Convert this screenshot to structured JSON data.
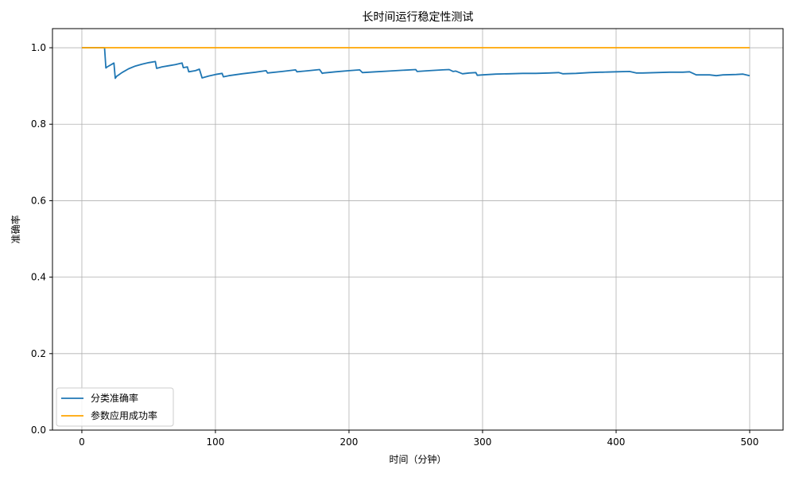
{
  "chart_data": {
    "type": "line",
    "title": "长时间运行稳定性测试",
    "xlabel": "时间（分钟）",
    "ylabel": "准确率",
    "xlim": [
      -22,
      525
    ],
    "ylim": [
      0.0,
      1.05
    ],
    "xticks": [
      0,
      100,
      200,
      300,
      400,
      500
    ],
    "yticks": [
      0.0,
      0.2,
      0.4,
      0.6,
      0.8,
      1.0
    ],
    "xtick_labels": [
      "0",
      "100",
      "200",
      "300",
      "400",
      "500"
    ],
    "ytick_labels": [
      "0.0",
      "0.2",
      "0.4",
      "0.6",
      "0.8",
      "1.0"
    ],
    "grid": true,
    "legend_position": "lower-left",
    "series": [
      {
        "name": "分类准确率",
        "color": "#1f77b4",
        "x": [
          0,
          17,
          18,
          19,
          24,
          25,
          26,
          30,
          35,
          40,
          45,
          50,
          55,
          56,
          60,
          65,
          70,
          75,
          76,
          79,
          80,
          85,
          88,
          90,
          95,
          100,
          105,
          106,
          110,
          120,
          130,
          138,
          139,
          150,
          160,
          161,
          170,
          178,
          180,
          181,
          190,
          200,
          208,
          210,
          220,
          230,
          240,
          250,
          251,
          260,
          270,
          275,
          278,
          280,
          285,
          290,
          295,
          296,
          300,
          310,
          320,
          330,
          340,
          350,
          357,
          360,
          370,
          380,
          388,
          390,
          400,
          410,
          415,
          420,
          430,
          440,
          450,
          455,
          460,
          470,
          475,
          480,
          490,
          495,
          500
        ],
        "values": [
          1.0,
          1.0,
          0.947,
          0.95,
          0.96,
          0.92,
          0.925,
          0.935,
          0.945,
          0.952,
          0.957,
          0.961,
          0.964,
          0.946,
          0.95,
          0.953,
          0.956,
          0.96,
          0.948,
          0.95,
          0.937,
          0.94,
          0.944,
          0.921,
          0.926,
          0.93,
          0.933,
          0.924,
          0.927,
          0.932,
          0.936,
          0.94,
          0.934,
          0.938,
          0.942,
          0.937,
          0.94,
          0.943,
          0.933,
          0.934,
          0.937,
          0.94,
          0.942,
          0.935,
          0.937,
          0.939,
          0.941,
          0.943,
          0.938,
          0.94,
          0.942,
          0.943,
          0.938,
          0.939,
          0.932,
          0.934,
          0.935,
          0.928,
          0.929,
          0.931,
          0.932,
          0.933,
          0.933,
          0.934,
          0.935,
          0.932,
          0.933,
          0.935,
          0.936,
          0.936,
          0.937,
          0.938,
          0.934,
          0.934,
          0.935,
          0.936,
          0.936,
          0.937,
          0.929,
          0.929,
          0.927,
          0.929,
          0.93,
          0.931,
          0.927
        ]
      },
      {
        "name": "参数应用成功率",
        "color": "#ffa500",
        "x": [
          0,
          500
        ],
        "values": [
          1.0,
          1.0
        ]
      }
    ]
  }
}
